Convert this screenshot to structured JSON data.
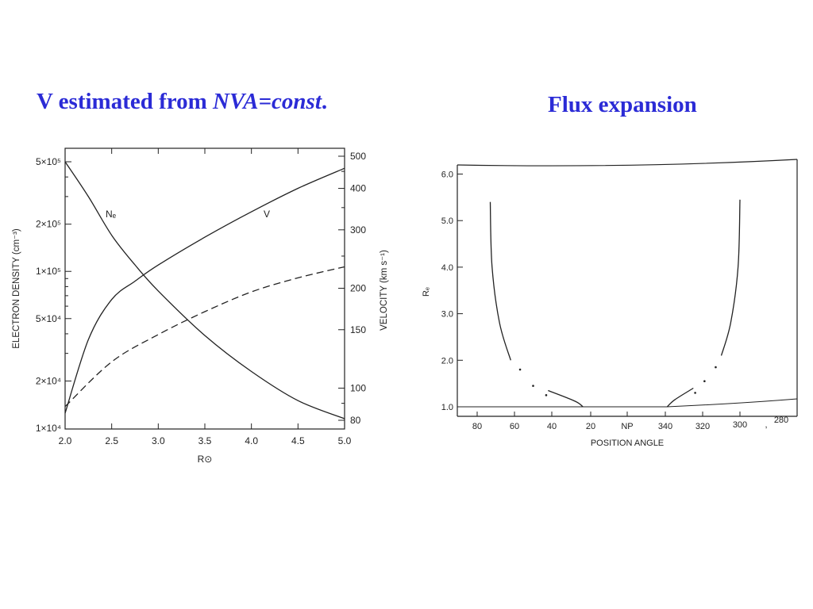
{
  "slide": {
    "title_left": {
      "plain": "V estimated from ",
      "italic": "NVA=const",
      "end": "."
    },
    "title_right": "Flux expansion"
  },
  "chart_data": [
    {
      "type": "line",
      "x_label": "R⊙",
      "x_ticks": [
        "2.0",
        "2.5",
        "3.0",
        "3.5",
        "4.0",
        "4.5",
        "5.0"
      ],
      "x_range": [
        2.0,
        5.0
      ],
      "y_left_label": "ELECTRON DENSITY (cm⁻³)",
      "y_left_scale": "log",
      "y_left_range": [
        10000,
        500000
      ],
      "y_left_ticks": [
        {
          "value": 500000,
          "label": "5×10⁵"
        },
        {
          "value": 200000,
          "label": "2×10⁵"
        },
        {
          "value": 100000,
          "label": "1×10⁵"
        },
        {
          "value": 50000,
          "label": "5×10⁴"
        },
        {
          "value": 20000,
          "label": "2×10⁴"
        },
        {
          "value": 10000,
          "label": "1×10⁴"
        }
      ],
      "y_right_label": "VELOCITY (km s⁻¹)",
      "y_right_scale": "log",
      "y_right_ticks": [
        "500",
        "400",
        "300",
        "200",
        "150",
        "100",
        "80"
      ],
      "series": [
        {
          "name": "Nₑ",
          "axis": "left",
          "style": "solid",
          "x": [
            2.0,
            2.25,
            2.5,
            2.75,
            3.0,
            3.5,
            4.0,
            4.5,
            5.0
          ],
          "y": [
            500000,
            300000,
            170000,
            110000,
            75000,
            39000,
            23000,
            15000,
            11500
          ]
        },
        {
          "name": "V",
          "axis": "right",
          "style": "solid",
          "x": [
            2.0,
            2.25,
            2.5,
            2.75,
            3.0,
            3.5,
            4.0,
            4.5,
            5.0
          ],
          "y": [
            84,
            140,
            185,
            210,
            235,
            285,
            340,
            400,
            460
          ]
        },
        {
          "name": "",
          "axis": "right",
          "style": "dashed",
          "x": [
            2.0,
            2.5,
            3.0,
            3.5,
            4.0,
            4.5,
            5.0
          ],
          "y": [
            88,
            120,
            145,
            170,
            195,
            215,
            232
          ]
        }
      ]
    },
    {
      "type": "line",
      "x_label": "POSITION ANGLE",
      "x_ticks": [
        "80",
        "60",
        "40",
        "20",
        "NP",
        "340",
        "320",
        "300",
        ",",
        "280"
      ],
      "y_label": "Rₑ",
      "y_ticks": [
        "6.0",
        "5.0",
        "4.0",
        "3.0",
        "2.0",
        "1.0"
      ],
      "y_range": [
        1.0,
        6.0
      ],
      "series": [
        {
          "name": "",
          "style": "solid",
          "x": [
            73,
            72,
            68,
            62
          ],
          "y": [
            5.4,
            4.0,
            2.8,
            2.0
          ]
        },
        {
          "name": "",
          "style": "dotted",
          "x": [
            57,
            50,
            43
          ],
          "y": [
            1.8,
            1.45,
            1.25
          ]
        },
        {
          "name": "",
          "style": "solid",
          "x": [
            42,
            28,
            24
          ],
          "y": [
            1.35,
            1.12,
            1.0
          ]
        },
        {
          "name": "",
          "style": "solid",
          "x": [
            300,
            301,
            305,
            310
          ],
          "y": [
            5.45,
            4.0,
            2.8,
            2.1
          ]
        },
        {
          "name": "",
          "style": "dotted",
          "x": [
            313,
            319,
            324
          ],
          "y": [
            1.85,
            1.55,
            1.3
          ]
        },
        {
          "name": "",
          "style": "solid",
          "x": [
            325,
            335,
            339
          ],
          "y": [
            1.4,
            1.15,
            1.0
          ]
        }
      ]
    }
  ]
}
